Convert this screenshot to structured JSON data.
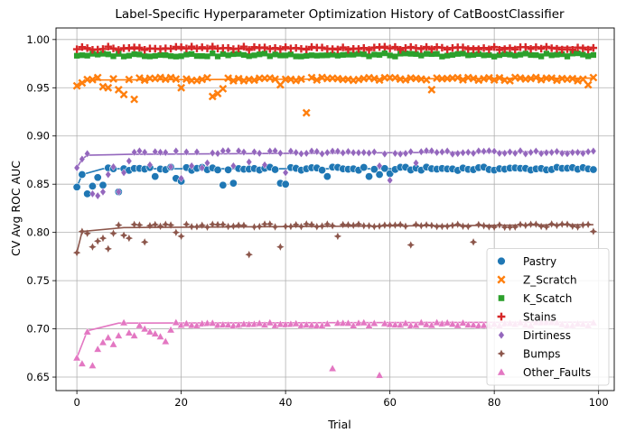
{
  "chart_data": {
    "type": "scatter",
    "title": "Label-Specific Hyperparameter Optimization History of CatBoostClassifier",
    "xlabel": "Trial",
    "ylabel": "CV Avg ROC AUC",
    "xlim": [
      -4,
      103
    ],
    "ylim": [
      0.636,
      1.012
    ],
    "xticks": [
      0,
      20,
      40,
      60,
      80,
      100
    ],
    "xtick_labels": [
      "0",
      "20",
      "40",
      "60",
      "80",
      "100"
    ],
    "yticks": [
      0.65,
      0.7,
      0.75,
      0.8,
      0.85,
      0.9,
      0.95,
      1.0
    ],
    "ytick_labels": [
      "0.65",
      "0.70",
      "0.75",
      "0.80",
      "0.85",
      "0.90",
      "0.95",
      "1.00"
    ],
    "grid": true,
    "legend_position": "bottom-right",
    "series": [
      {
        "name": "Pastry",
        "color": "#1f77b4",
        "marker": "circle",
        "base": 0.866,
        "outliers": [
          [
            0,
            0.847
          ],
          [
            1,
            0.86
          ],
          [
            2,
            0.84
          ],
          [
            3,
            0.848
          ],
          [
            4,
            0.857
          ],
          [
            5,
            0.849
          ],
          [
            8,
            0.842
          ],
          [
            15,
            0.858
          ],
          [
            19,
            0.856
          ],
          [
            20,
            0.853
          ],
          [
            28,
            0.849
          ],
          [
            30,
            0.851
          ],
          [
            39,
            0.851
          ],
          [
            40,
            0.85
          ],
          [
            48,
            0.858
          ],
          [
            56,
            0.858
          ],
          [
            58,
            0.86
          ],
          [
            60,
            0.861
          ]
        ],
        "best": [
          [
            0,
            0.847
          ],
          [
            1,
            0.86
          ],
          [
            5,
            0.866
          ],
          [
            99,
            0.866
          ]
        ]
      },
      {
        "name": "Z_Scratch",
        "color": "#ff7f0e",
        "marker": "x",
        "base": 0.959,
        "outliers": [
          [
            0,
            0.952
          ],
          [
            1,
            0.955
          ],
          [
            5,
            0.951
          ],
          [
            6,
            0.95
          ],
          [
            8,
            0.948
          ],
          [
            9,
            0.943
          ],
          [
            11,
            0.938
          ],
          [
            20,
            0.95
          ],
          [
            26,
            0.941
          ],
          [
            27,
            0.944
          ],
          [
            28,
            0.949
          ],
          [
            39,
            0.953
          ],
          [
            44,
            0.924
          ],
          [
            68,
            0.948
          ],
          [
            98,
            0.953
          ]
        ],
        "best": [
          [
            0,
            0.952
          ],
          [
            2,
            0.958
          ],
          [
            99,
            0.96
          ]
        ]
      },
      {
        "name": "K_Scatch",
        "color": "#2ca02c",
        "marker": "square",
        "base": 0.984,
        "outliers": [],
        "best": [
          [
            0,
            0.983
          ],
          [
            99,
            0.985
          ]
        ]
      },
      {
        "name": "Stains",
        "color": "#d62728",
        "marker": "plus",
        "base": 0.991,
        "outliers": [],
        "best": [
          [
            0,
            0.99
          ],
          [
            99,
            0.992
          ]
        ]
      },
      {
        "name": "Dirtiness",
        "color": "#9467bd",
        "marker": "diamond",
        "base": 0.883,
        "outliers": [
          [
            0,
            0.867
          ],
          [
            1,
            0.876
          ],
          [
            3,
            0.84
          ],
          [
            4,
            0.838
          ],
          [
            5,
            0.842
          ],
          [
            6,
            0.86
          ],
          [
            7,
            0.868
          ],
          [
            8,
            0.842
          ],
          [
            9,
            0.862
          ],
          [
            10,
            0.874
          ],
          [
            14,
            0.87
          ],
          [
            18,
            0.868
          ],
          [
            20,
            0.856
          ],
          [
            22,
            0.869
          ],
          [
            24,
            0.867
          ],
          [
            25,
            0.872
          ],
          [
            30,
            0.869
          ],
          [
            33,
            0.873
          ],
          [
            36,
            0.87
          ],
          [
            40,
            0.862
          ],
          [
            58,
            0.869
          ],
          [
            60,
            0.854
          ],
          [
            65,
            0.872
          ]
        ],
        "best": [
          [
            0,
            0.867
          ],
          [
            1,
            0.876
          ],
          [
            2,
            0.88
          ],
          [
            10,
            0.881
          ],
          [
            99,
            0.884
          ]
        ]
      },
      {
        "name": "Bumps",
        "color": "#8c564b",
        "marker": "star4",
        "base": 0.807,
        "outliers": [
          [
            0,
            0.779
          ],
          [
            1,
            0.801
          ],
          [
            2,
            0.799
          ],
          [
            3,
            0.785
          ],
          [
            4,
            0.791
          ],
          [
            5,
            0.794
          ],
          [
            6,
            0.783
          ],
          [
            7,
            0.799
          ],
          [
            9,
            0.797
          ],
          [
            10,
            0.794
          ],
          [
            13,
            0.79
          ],
          [
            19,
            0.8
          ],
          [
            20,
            0.796
          ],
          [
            33,
            0.777
          ],
          [
            39,
            0.785
          ],
          [
            50,
            0.796
          ],
          [
            64,
            0.787
          ],
          [
            76,
            0.79
          ],
          [
            99,
            0.801
          ]
        ],
        "best": [
          [
            0,
            0.779
          ],
          [
            1,
            0.801
          ],
          [
            9,
            0.805
          ],
          [
            99,
            0.808
          ]
        ]
      },
      {
        "name": "Other_Faults",
        "color": "#e377c2",
        "marker": "triangle",
        "base": 0.705,
        "outliers": [
          [
            0,
            0.67
          ],
          [
            1,
            0.664
          ],
          [
            2,
            0.697
          ],
          [
            3,
            0.662
          ],
          [
            4,
            0.679
          ],
          [
            5,
            0.686
          ],
          [
            6,
            0.691
          ],
          [
            7,
            0.684
          ],
          [
            8,
            0.693
          ],
          [
            10,
            0.696
          ],
          [
            11,
            0.693
          ],
          [
            13,
            0.7
          ],
          [
            14,
            0.697
          ],
          [
            15,
            0.695
          ],
          [
            16,
            0.692
          ],
          [
            17,
            0.687
          ],
          [
            18,
            0.699
          ],
          [
            49,
            0.659
          ],
          [
            58,
            0.652
          ]
        ],
        "best": [
          [
            0,
            0.67
          ],
          [
            2,
            0.698
          ],
          [
            8,
            0.706
          ],
          [
            99,
            0.707
          ]
        ]
      }
    ]
  }
}
